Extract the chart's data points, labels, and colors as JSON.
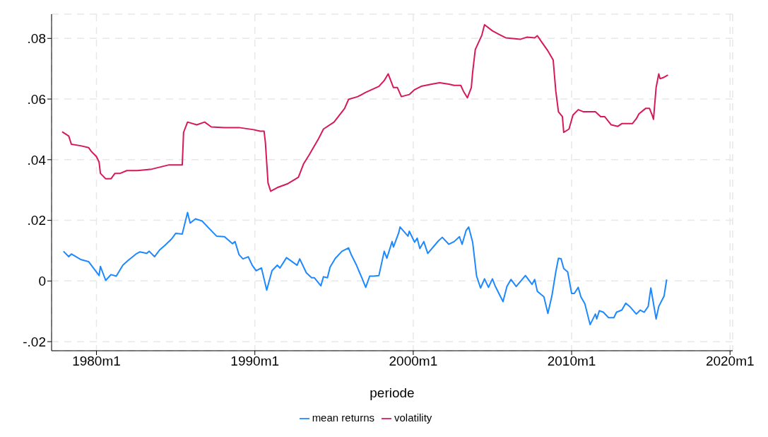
{
  "chart_data": {
    "type": "line",
    "xlabel": "periode",
    "xlim": [
      "1977-03",
      "2020-03"
    ],
    "ylim": [
      -0.023,
      0.088
    ],
    "xticks": [
      {
        "value": "1980-01",
        "label": "1980m1"
      },
      {
        "value": "1990-01",
        "label": "1990m1"
      },
      {
        "value": "2000-01",
        "label": "2000m1"
      },
      {
        "value": "2010-01",
        "label": "2010m1"
      },
      {
        "value": "2020-01",
        "label": "2020m1"
      }
    ],
    "yticks": [
      {
        "value": -0.02,
        "label": "-.02"
      },
      {
        "value": 0,
        "label": "0"
      },
      {
        "value": 0.02,
        "label": ".02"
      },
      {
        "value": 0.04,
        "label": ".04"
      },
      {
        "value": 0.06,
        "label": ".06"
      },
      {
        "value": 0.08,
        "label": ".08"
      }
    ],
    "grid": true,
    "legend": "bottom",
    "marker": "none",
    "line_style": "solid",
    "series": [
      {
        "name": "mean returns",
        "color": "#1e88ff",
        "x": [
          "1977-12",
          "1978-04",
          "1978-06",
          "1979-01",
          "1979-07",
          "1980-03",
          "1980-04",
          "1980-08",
          "1980-12",
          "1981-04",
          "1981-09",
          "1982-01",
          "1982-07",
          "1982-10",
          "1983-03",
          "1983-05",
          "1983-09",
          "1984-01",
          "1984-05",
          "1984-10",
          "1985-01",
          "1985-06",
          "1985-10",
          "1985-12",
          "1986-04",
          "1986-09",
          "1987-02",
          "1987-08",
          "1988-02",
          "1988-08",
          "1988-10",
          "1989-01",
          "1989-04",
          "1989-08",
          "1989-11",
          "1990-02",
          "1990-06",
          "1990-10",
          "1991-02",
          "1991-06",
          "1991-08",
          "1992-01",
          "1992-09",
          "1992-11",
          "1993-04",
          "1993-08",
          "1993-10",
          "1994-03",
          "1994-05",
          "1994-08",
          "1994-10",
          "1995-02",
          "1995-07",
          "1995-12",
          "1996-02",
          "1996-06",
          "1996-10",
          "1997-01",
          "1997-04",
          "1997-07",
          "1997-11",
          "1998-03",
          "1998-05",
          "1998-09",
          "1998-10",
          "1999-02",
          "1999-03",
          "1999-09",
          "1999-10",
          "2000-02",
          "2000-04",
          "2000-06",
          "2000-09",
          "2000-12",
          "2001-08",
          "2001-11",
          "2002-04",
          "2002-08",
          "2002-12",
          "2003-02",
          "2003-05",
          "2003-07",
          "2003-10",
          "2004-01",
          "2004-04",
          "2004-07",
          "2004-10",
          "2005-01",
          "2005-03",
          "2005-09",
          "2005-12",
          "2006-03",
          "2006-07",
          "2007-02",
          "2007-07",
          "2007-09",
          "2007-11",
          "2008-04",
          "2008-07",
          "2008-10",
          "2009-01",
          "2009-03",
          "2009-05",
          "2009-07",
          "2009-10",
          "2010-01",
          "2010-03",
          "2010-06",
          "2010-08",
          "2010-11",
          "2011-03",
          "2011-07",
          "2011-08",
          "2011-10",
          "2012-01",
          "2012-05",
          "2012-09",
          "2012-11",
          "2013-03",
          "2013-06",
          "2013-09",
          "2014-02",
          "2014-05",
          "2014-08",
          "2014-11",
          "2015-01",
          "2015-05",
          "2015-07",
          "2015-11",
          "2016-01"
        ],
        "values": [
          0.0098,
          0.008,
          0.0089,
          0.0071,
          0.0064,
          0.0018,
          0.0048,
          0.0002,
          0.0021,
          0.0016,
          0.0052,
          0.0068,
          0.0089,
          0.0096,
          0.0091,
          0.0098,
          0.008,
          0.0103,
          0.0118,
          0.0139,
          0.0157,
          0.0155,
          0.0226,
          0.0191,
          0.0205,
          0.0198,
          0.0175,
          0.0148,
          0.0146,
          0.0123,
          0.013,
          0.0087,
          0.0073,
          0.008,
          0.0052,
          0.0034,
          0.0043,
          -0.003,
          0.0034,
          0.0052,
          0.0043,
          0.0077,
          0.0052,
          0.0073,
          0.0027,
          0.0011,
          0.0011,
          -0.0016,
          0.0014,
          0.0011,
          0.0046,
          0.0075,
          0.0098,
          0.0109,
          0.0087,
          0.0052,
          0.0011,
          -0.0021,
          0.0016,
          0.0016,
          0.0018,
          0.0098,
          0.0075,
          0.013,
          0.0112,
          0.0159,
          0.0178,
          0.0148,
          0.0164,
          0.0128,
          0.0141,
          0.0107,
          0.013,
          0.0091,
          0.0132,
          0.0144,
          0.0121,
          0.013,
          0.0146,
          0.0121,
          0.0166,
          0.0178,
          0.0128,
          0.0016,
          -0.0023,
          0.0007,
          -0.0021,
          0.0007,
          -0.0016,
          -0.0068,
          -0.0018,
          0.0005,
          -0.0018,
          0.0018,
          -0.0011,
          0.0005,
          -0.0034,
          -0.0052,
          -0.0107,
          -0.005,
          0.003,
          0.0075,
          0.0073,
          0.0041,
          0.003,
          -0.0041,
          -0.0041,
          -0.0021,
          -0.0052,
          -0.0075,
          -0.0144,
          -0.0109,
          -0.0125,
          -0.0098,
          -0.0103,
          -0.0121,
          -0.0121,
          -0.0103,
          -0.0096,
          -0.0073,
          -0.0084,
          -0.0109,
          -0.0096,
          -0.0103,
          -0.0084,
          -0.0023,
          -0.0125,
          -0.0084,
          -0.005,
          0.0005
        ]
      },
      {
        "name": "volatility",
        "color": "#d6195a",
        "x": [
          "1977-11",
          "1978-04",
          "1978-06",
          "1979-01",
          "1979-07",
          "1979-09",
          "1980-01",
          "1980-03",
          "1980-04",
          "1980-08",
          "1980-12",
          "1981-03",
          "1981-07",
          "1981-12",
          "1982-08",
          "1983-07",
          "1984-08",
          "1985-04",
          "1985-06",
          "1985-07",
          "1985-10",
          "1986-05",
          "1986-11",
          "1987-04",
          "1988-02",
          "1989-01",
          "1989-12",
          "1990-05",
          "1990-08",
          "1990-09",
          "1990-11",
          "1991-01",
          "1991-06",
          "1992-02",
          "1992-10",
          "1993-02",
          "1993-06",
          "1994-01",
          "1994-05",
          "1995-01",
          "1995-09",
          "1995-12",
          "1996-07",
          "1997-01",
          "1997-11",
          "1998-03",
          "1998-06",
          "1998-10",
          "1999-01",
          "1999-04",
          "1999-10",
          "2000-02",
          "2000-07",
          "2001-03",
          "2001-09",
          "2002-04",
          "2002-08",
          "2003-01",
          "2003-03",
          "2003-06",
          "2003-09",
          "2003-10",
          "2003-12",
          "2004-05",
          "2004-07",
          "2005-01",
          "2005-06",
          "2005-11",
          "2006-10",
          "2007-03",
          "2007-09",
          "2007-11",
          "2008-02",
          "2008-07",
          "2008-11",
          "2009-01",
          "2009-03",
          "2009-06",
          "2009-07",
          "2009-11",
          "2010-02",
          "2010-06",
          "2010-10",
          "2011-03",
          "2011-07",
          "2011-11",
          "2012-02",
          "2012-07",
          "2012-12",
          "2013-03",
          "2013-11",
          "2014-02",
          "2014-04",
          "2014-09",
          "2014-12",
          "2015-02",
          "2015-03",
          "2015-05",
          "2015-07",
          "2015-08",
          "2015-11",
          "2016-02"
        ],
        "values": [
          0.0492,
          0.0478,
          0.0451,
          0.0446,
          0.044,
          0.0428,
          0.041,
          0.0392,
          0.0355,
          0.0337,
          0.0337,
          0.0355,
          0.0355,
          0.0364,
          0.0364,
          0.0369,
          0.0383,
          0.0383,
          0.0383,
          0.049,
          0.0524,
          0.0515,
          0.0524,
          0.0508,
          0.0506,
          0.0506,
          0.0499,
          0.0494,
          0.0494,
          0.0456,
          0.0323,
          0.0296,
          0.0308,
          0.0321,
          0.0342,
          0.0387,
          0.0415,
          0.0467,
          0.0501,
          0.0524,
          0.0569,
          0.0599,
          0.0608,
          0.0622,
          0.0642,
          0.0661,
          0.0683,
          0.0638,
          0.0638,
          0.0608,
          0.0615,
          0.0631,
          0.0642,
          0.0649,
          0.0654,
          0.0649,
          0.0645,
          0.0645,
          0.0626,
          0.0604,
          0.0638,
          0.0688,
          0.0763,
          0.0811,
          0.0845,
          0.0825,
          0.0813,
          0.0802,
          0.0797,
          0.0804,
          0.0802,
          0.0809,
          0.079,
          0.0759,
          0.0729,
          0.0626,
          0.0558,
          0.0542,
          0.049,
          0.0501,
          0.0547,
          0.0565,
          0.0558,
          0.0558,
          0.0558,
          0.0542,
          0.0542,
          0.0515,
          0.051,
          0.0519,
          0.0519,
          0.0535,
          0.0551,
          0.0569,
          0.0569,
          0.0547,
          0.0533,
          0.0638,
          0.0683,
          0.0667,
          0.0672,
          0.0679
        ]
      }
    ]
  }
}
